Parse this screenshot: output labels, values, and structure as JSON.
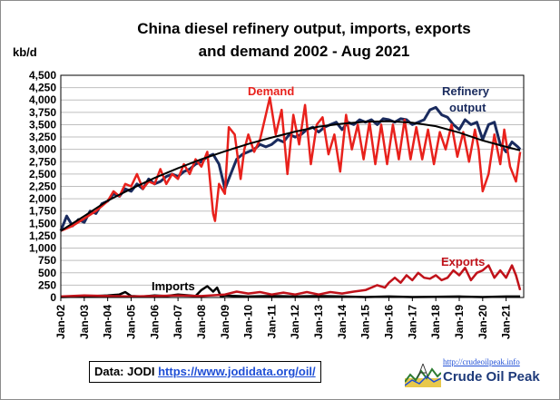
{
  "chart_data": {
    "type": "line",
    "title_line1": "China diesel refinery output, imports, exports",
    "title_line2": "and demand 2002 - Aug 2021",
    "ylabel": "kb/d",
    "ylim": [
      0,
      4500
    ],
    "yticks": [
      "0",
      "250",
      "500",
      "750",
      "1,000",
      "1,250",
      "1,500",
      "1,750",
      "2,000",
      "2,250",
      "2,500",
      "2,750",
      "3,000",
      "3,250",
      "3,500",
      "3,750",
      "4,000",
      "4,250",
      "4,500"
    ],
    "ytick_values": [
      0,
      250,
      500,
      750,
      1000,
      1250,
      1500,
      1750,
      2000,
      2250,
      2500,
      2750,
      3000,
      3250,
      3500,
      3750,
      4000,
      4250,
      4500
    ],
    "xticks": [
      "Jan-02",
      "Jan-03",
      "Jan-04",
      "Jan-05",
      "Jan-06",
      "Jan-07",
      "Jan-08",
      "Jan-09",
      "Jan-10",
      "Jan-11",
      "Jan-12",
      "Jan-13",
      "Jan-14",
      "Jan-15",
      "Jan-16",
      "Jan-17",
      "Jan-18",
      "Jan-19",
      "Jan-20",
      "Jan-21"
    ],
    "grid": true,
    "annotations": {
      "demand": "Demand",
      "refinery_1": "Refinery",
      "refinery_2": "output",
      "exports": "Exports",
      "imports": "Imports"
    },
    "series": [
      {
        "name": "Refinery output",
        "color": "#1a2b5e",
        "points": [
          [
            2002.0,
            1350
          ],
          [
            2002.25,
            1650
          ],
          [
            2002.5,
            1450
          ],
          [
            2002.75,
            1580
          ],
          [
            2003.0,
            1520
          ],
          [
            2003.25,
            1750
          ],
          [
            2003.5,
            1700
          ],
          [
            2003.75,
            1900
          ],
          [
            2004.0,
            1950
          ],
          [
            2004.25,
            2100
          ],
          [
            2004.5,
            2050
          ],
          [
            2004.75,
            2200
          ],
          [
            2005.0,
            2150
          ],
          [
            2005.25,
            2300
          ],
          [
            2005.5,
            2200
          ],
          [
            2005.75,
            2400
          ],
          [
            2006.0,
            2300
          ],
          [
            2006.25,
            2350
          ],
          [
            2006.5,
            2450
          ],
          [
            2006.75,
            2500
          ],
          [
            2007.0,
            2450
          ],
          [
            2007.25,
            2550
          ],
          [
            2007.5,
            2600
          ],
          [
            2007.75,
            2700
          ],
          [
            2008.0,
            2750
          ],
          [
            2008.25,
            2850
          ],
          [
            2008.5,
            2900
          ],
          [
            2008.75,
            2700
          ],
          [
            2009.0,
            2200
          ],
          [
            2009.25,
            2500
          ],
          [
            2009.5,
            2800
          ],
          [
            2009.75,
            2900
          ],
          [
            2010.0,
            2950
          ],
          [
            2010.25,
            3000
          ],
          [
            2010.5,
            3100
          ],
          [
            2010.75,
            3050
          ],
          [
            2011.0,
            3100
          ],
          [
            2011.25,
            3200
          ],
          [
            2011.5,
            3150
          ],
          [
            2011.75,
            3300
          ],
          [
            2012.0,
            3250
          ],
          [
            2012.25,
            3300
          ],
          [
            2012.5,
            3400
          ],
          [
            2012.75,
            3450
          ],
          [
            2013.0,
            3350
          ],
          [
            2013.25,
            3450
          ],
          [
            2013.5,
            3500
          ],
          [
            2013.75,
            3550
          ],
          [
            2014.0,
            3400
          ],
          [
            2014.25,
            3550
          ],
          [
            2014.5,
            3500
          ],
          [
            2014.75,
            3600
          ],
          [
            2015.0,
            3550
          ],
          [
            2015.25,
            3600
          ],
          [
            2015.5,
            3500
          ],
          [
            2015.75,
            3620
          ],
          [
            2016.0,
            3600
          ],
          [
            2016.25,
            3550
          ],
          [
            2016.5,
            3620
          ],
          [
            2016.75,
            3600
          ],
          [
            2017.0,
            3500
          ],
          [
            2017.25,
            3550
          ],
          [
            2017.5,
            3600
          ],
          [
            2017.75,
            3800
          ],
          [
            2018.0,
            3850
          ],
          [
            2018.25,
            3700
          ],
          [
            2018.5,
            3650
          ],
          [
            2018.75,
            3500
          ],
          [
            2019.0,
            3400
          ],
          [
            2019.25,
            3600
          ],
          [
            2019.5,
            3500
          ],
          [
            2019.75,
            3550
          ],
          [
            2020.0,
            3200
          ],
          [
            2020.25,
            3500
          ],
          [
            2020.5,
            3550
          ],
          [
            2020.75,
            3100
          ],
          [
            2021.0,
            2950
          ],
          [
            2021.25,
            3150
          ],
          [
            2021.5,
            3050
          ],
          [
            2021.6,
            3000
          ]
        ]
      },
      {
        "name": "Demand",
        "color": "#e8211c",
        "points": [
          [
            2002.0,
            1350
          ],
          [
            2002.5,
            1450
          ],
          [
            2003.0,
            1600
          ],
          [
            2003.5,
            1750
          ],
          [
            2004.0,
            1950
          ],
          [
            2004.25,
            2150
          ],
          [
            2004.5,
            2050
          ],
          [
            2004.75,
            2300
          ],
          [
            2005.0,
            2250
          ],
          [
            2005.25,
            2500
          ],
          [
            2005.5,
            2200
          ],
          [
            2005.75,
            2350
          ],
          [
            2006.0,
            2300
          ],
          [
            2006.25,
            2600
          ],
          [
            2006.5,
            2300
          ],
          [
            2006.75,
            2500
          ],
          [
            2007.0,
            2400
          ],
          [
            2007.25,
            2700
          ],
          [
            2007.5,
            2500
          ],
          [
            2007.75,
            2800
          ],
          [
            2008.0,
            2650
          ],
          [
            2008.25,
            2950
          ],
          [
            2008.5,
            1700
          ],
          [
            2008.58,
            1550
          ],
          [
            2008.75,
            2300
          ],
          [
            2009.0,
            2100
          ],
          [
            2009.17,
            3450
          ],
          [
            2009.42,
            3300
          ],
          [
            2009.67,
            2400
          ],
          [
            2009.83,
            3000
          ],
          [
            2010.0,
            3300
          ],
          [
            2010.25,
            2950
          ],
          [
            2010.5,
            3200
          ],
          [
            2010.75,
            3700
          ],
          [
            2010.92,
            4050
          ],
          [
            2011.17,
            3300
          ],
          [
            2011.42,
            3800
          ],
          [
            2011.67,
            2500
          ],
          [
            2011.92,
            3700
          ],
          [
            2012.17,
            3100
          ],
          [
            2012.42,
            3900
          ],
          [
            2012.67,
            2700
          ],
          [
            2012.92,
            3500
          ],
          [
            2013.17,
            3650
          ],
          [
            2013.42,
            2900
          ],
          [
            2013.67,
            3300
          ],
          [
            2013.92,
            2550
          ],
          [
            2014.17,
            3700
          ],
          [
            2014.42,
            3000
          ],
          [
            2014.67,
            3500
          ],
          [
            2014.92,
            2800
          ],
          [
            2015.17,
            3550
          ],
          [
            2015.42,
            2700
          ],
          [
            2015.67,
            3500
          ],
          [
            2015.92,
            2700
          ],
          [
            2016.17,
            3500
          ],
          [
            2016.42,
            2800
          ],
          [
            2016.67,
            3600
          ],
          [
            2016.92,
            2800
          ],
          [
            2017.17,
            3450
          ],
          [
            2017.42,
            2800
          ],
          [
            2017.67,
            3400
          ],
          [
            2017.92,
            2700
          ],
          [
            2018.17,
            3350
          ],
          [
            2018.42,
            3000
          ],
          [
            2018.67,
            3500
          ],
          [
            2018.92,
            2850
          ],
          [
            2019.17,
            3350
          ],
          [
            2019.42,
            2750
          ],
          [
            2019.67,
            3400
          ],
          [
            2019.83,
            3000
          ],
          [
            2020.0,
            2150
          ],
          [
            2020.25,
            2500
          ],
          [
            2020.5,
            3300
          ],
          [
            2020.75,
            2700
          ],
          [
            2020.92,
            3400
          ],
          [
            2021.17,
            2650
          ],
          [
            2021.42,
            2350
          ],
          [
            2021.6,
            2950
          ]
        ]
      },
      {
        "name": "Exports",
        "color": "#c0121a",
        "points": [
          [
            2002.0,
            20
          ],
          [
            2003.0,
            40
          ],
          [
            2004.0,
            30
          ],
          [
            2005.0,
            20
          ],
          [
            2006.0,
            30
          ],
          [
            2007.0,
            40
          ],
          [
            2008.0,
            30
          ],
          [
            2009.0,
            60
          ],
          [
            2009.5,
            120
          ],
          [
            2010.0,
            80
          ],
          [
            2010.5,
            110
          ],
          [
            2011.0,
            60
          ],
          [
            2011.5,
            100
          ],
          [
            2012.0,
            60
          ],
          [
            2012.5,
            110
          ],
          [
            2013.0,
            60
          ],
          [
            2013.5,
            110
          ],
          [
            2014.0,
            80
          ],
          [
            2014.5,
            120
          ],
          [
            2015.0,
            150
          ],
          [
            2015.5,
            250
          ],
          [
            2015.83,
            200
          ],
          [
            2016.0,
            300
          ],
          [
            2016.25,
            400
          ],
          [
            2016.5,
            300
          ],
          [
            2016.75,
            450
          ],
          [
            2017.0,
            350
          ],
          [
            2017.25,
            500
          ],
          [
            2017.5,
            400
          ],
          [
            2017.75,
            380
          ],
          [
            2018.0,
            450
          ],
          [
            2018.25,
            350
          ],
          [
            2018.5,
            400
          ],
          [
            2018.75,
            550
          ],
          [
            2019.0,
            450
          ],
          [
            2019.25,
            600
          ],
          [
            2019.5,
            350
          ],
          [
            2019.75,
            500
          ],
          [
            2020.0,
            550
          ],
          [
            2020.25,
            650
          ],
          [
            2020.5,
            400
          ],
          [
            2020.75,
            550
          ],
          [
            2021.0,
            400
          ],
          [
            2021.25,
            650
          ],
          [
            2021.42,
            450
          ],
          [
            2021.6,
            150
          ]
        ]
      },
      {
        "name": "Imports",
        "color": "#000000",
        "points": [
          [
            2002.0,
            10
          ],
          [
            2003.0,
            20
          ],
          [
            2004.0,
            40
          ],
          [
            2004.5,
            60
          ],
          [
            2004.75,
            110
          ],
          [
            2005.0,
            30
          ],
          [
            2005.5,
            20
          ],
          [
            2006.0,
            40
          ],
          [
            2006.5,
            30
          ],
          [
            2007.0,
            60
          ],
          [
            2007.5,
            40
          ],
          [
            2007.75,
            30
          ],
          [
            2008.0,
            150
          ],
          [
            2008.25,
            230
          ],
          [
            2008.5,
            120
          ],
          [
            2008.67,
            200
          ],
          [
            2008.83,
            20
          ],
          [
            2009.0,
            40
          ],
          [
            2010.0,
            20
          ],
          [
            2011.0,
            30
          ],
          [
            2012.0,
            20
          ],
          [
            2013.0,
            30
          ],
          [
            2014.0,
            20
          ],
          [
            2015.0,
            10
          ],
          [
            2016.0,
            20
          ],
          [
            2017.0,
            10
          ],
          [
            2018.0,
            15
          ],
          [
            2019.0,
            20
          ],
          [
            2020.0,
            10
          ],
          [
            2021.0,
            20
          ],
          [
            2021.6,
            20
          ]
        ]
      },
      {
        "name": "Trend",
        "color": "#000000",
        "points": [
          [
            2002.0,
            1350
          ],
          [
            2003.0,
            1650
          ],
          [
            2004.0,
            1960
          ],
          [
            2005.0,
            2200
          ],
          [
            2006.0,
            2420
          ],
          [
            2007.0,
            2620
          ],
          [
            2008.0,
            2800
          ],
          [
            2009.0,
            2960
          ],
          [
            2010.0,
            3110
          ],
          [
            2011.0,
            3240
          ],
          [
            2012.0,
            3360
          ],
          [
            2013.0,
            3460
          ],
          [
            2014.0,
            3520
          ],
          [
            2015.0,
            3560
          ],
          [
            2016.0,
            3570
          ],
          [
            2017.0,
            3540
          ],
          [
            2018.0,
            3470
          ],
          [
            2019.0,
            3340
          ],
          [
            2020.0,
            3180
          ],
          [
            2021.0,
            3050
          ],
          [
            2021.6,
            2980
          ]
        ]
      }
    ]
  },
  "source": {
    "label": "Data: JODI",
    "link": "https://www.jodidata.org/oil/"
  },
  "brand": {
    "url": "http://crudeoilpeak.info",
    "name": "Crude Oil Peak"
  }
}
